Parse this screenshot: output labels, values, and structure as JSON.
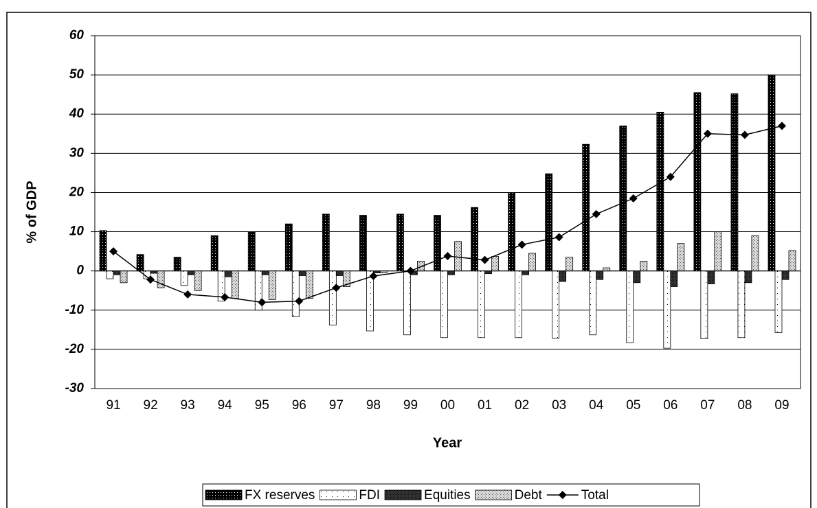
{
  "chart_data": {
    "type": "bar",
    "y_label": "% of GDP",
    "x_label": "Year",
    "categories": [
      "91",
      "92",
      "93",
      "94",
      "95",
      "96",
      "97",
      "98",
      "99",
      "00",
      "01",
      "02",
      "03",
      "04",
      "05",
      "06",
      "07",
      "08",
      "09"
    ],
    "series": [
      {
        "name": "FX reserves",
        "color": "#000000",
        "values": [
          10.3,
          4.2,
          3.5,
          9,
          10,
          12,
          14.5,
          14.2,
          14.5,
          14.2,
          16.2,
          20,
          24.8,
          32.3,
          37,
          40.5,
          45.5,
          45.2,
          50
        ]
      },
      {
        "name": "FDI",
        "color": "#ffffff",
        "values": [
          -2,
          -2,
          -3.7,
          -7.7,
          -10,
          -11.7,
          -13.8,
          -15.3,
          -16.3,
          -17,
          -17,
          -17,
          -17.2,
          -16.3,
          -18.3,
          -19.7,
          -17.3,
          -17,
          -15.7
        ]
      },
      {
        "name": "Equities",
        "color": "#333333",
        "values": [
          -1,
          -0.6,
          -1,
          -1.5,
          -1,
          -1.2,
          -1.2,
          -0.5,
          -1,
          -1,
          -0.7,
          -1,
          -2.7,
          -2.2,
          -3,
          -4,
          -3.3,
          -3,
          -2.2
        ]
      },
      {
        "name": "Debt",
        "color": "#d9d9d9",
        "values": [
          -3,
          -4.3,
          -5,
          -7,
          -7.3,
          -7,
          -4,
          -0.5,
          2.5,
          7.5,
          3.7,
          4.5,
          3.5,
          0.8,
          2.5,
          7,
          10,
          9,
          5.2
        ]
      },
      {
        "name": "Total",
        "type": "line",
        "color": "#000000",
        "values": [
          5,
          -2.2,
          -6,
          -6.7,
          -8,
          -7.7,
          -4.3,
          -1.3,
          0,
          3.8,
          2.8,
          6.7,
          8.6,
          14.5,
          18.5,
          24,
          35,
          34.7,
          37
        ]
      }
    ],
    "ylim": [
      -30,
      60
    ],
    "yticks": [
      -30,
      -20,
      -10,
      0,
      10,
      20,
      30,
      40,
      50,
      60
    ],
    "grid": true,
    "legend": "bottom"
  }
}
